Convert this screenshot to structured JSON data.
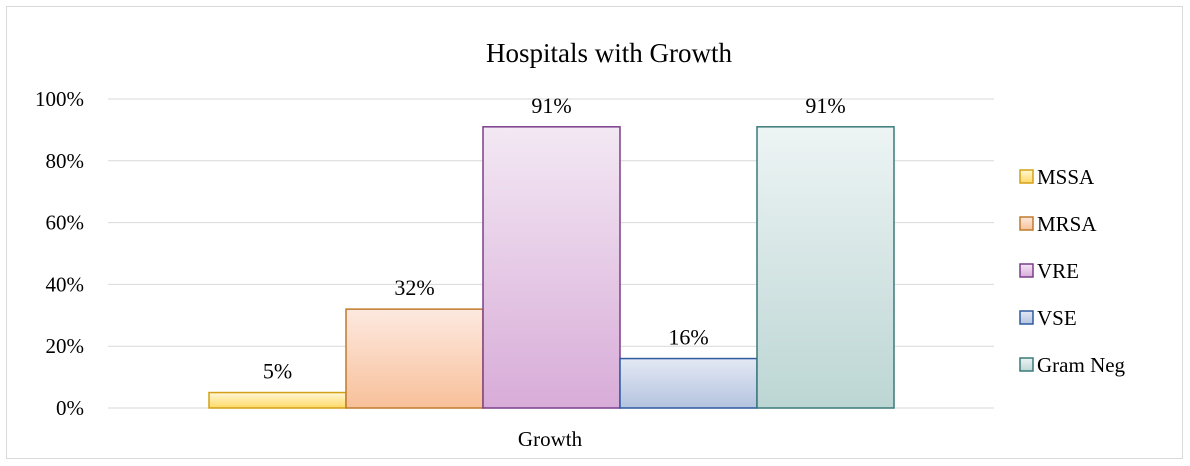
{
  "chart_data": {
    "type": "bar",
    "title": "Hospitals with Growth",
    "categories": [
      "Growth"
    ],
    "xlabel": "",
    "ylabel": "",
    "ylim": [
      0,
      100
    ],
    "yticks": [
      "0%",
      "20%",
      "40%",
      "60%",
      "80%",
      "100%"
    ],
    "grid": true,
    "legend_position": "right",
    "series": [
      {
        "name": "MSSA",
        "values": [
          5
        ],
        "label": "5%",
        "fill_top": "#fff7d6",
        "fill_bottom": "#ffd966",
        "stroke": "#d4a017"
      },
      {
        "name": "MRSA",
        "values": [
          32
        ],
        "label": "32%",
        "fill_top": "#fde9e0",
        "fill_bottom": "#f8c09a",
        "stroke": "#c07a2a"
      },
      {
        "name": "VRE",
        "values": [
          91
        ],
        "label": "91%",
        "fill_top": "#f3e8f4",
        "fill_bottom": "#d8acd8",
        "stroke": "#7a3e8c"
      },
      {
        "name": "VSE",
        "values": [
          16
        ],
        "label": "16%",
        "fill_top": "#e3e9f4",
        "fill_bottom": "#b4c3df",
        "stroke": "#2f5aa0"
      },
      {
        "name": "Gram Neg",
        "values": [
          91
        ],
        "label": "91%",
        "fill_top": "#edf4f4",
        "fill_bottom": "#bcd6d4",
        "stroke": "#3a7a78"
      }
    ]
  }
}
